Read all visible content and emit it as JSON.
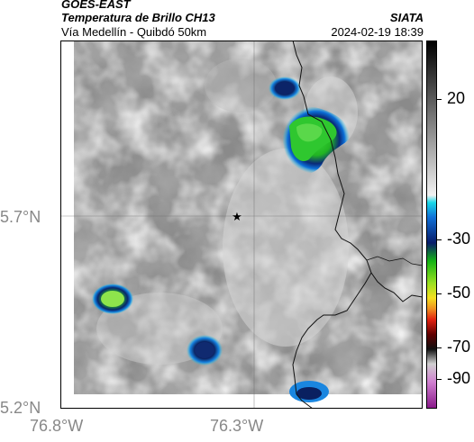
{
  "header": {
    "satellite": "GOES-EAST",
    "product": "Temperatura de Brillo CH13",
    "region": "Vía Medellín - Quibdó 50km",
    "agency": "SIATA",
    "datetime": "2024-02-19 18:39"
  },
  "axes": {
    "lat_ticks": [
      "5.7°N",
      "5.2°N"
    ],
    "lon_ticks": [
      "76.8°W",
      "76.3°W"
    ]
  },
  "colorbar": {
    "labels": [
      "20",
      "-30",
      "-50",
      "-70",
      "-90"
    ]
  },
  "map": {
    "marker": "star-icon"
  }
}
